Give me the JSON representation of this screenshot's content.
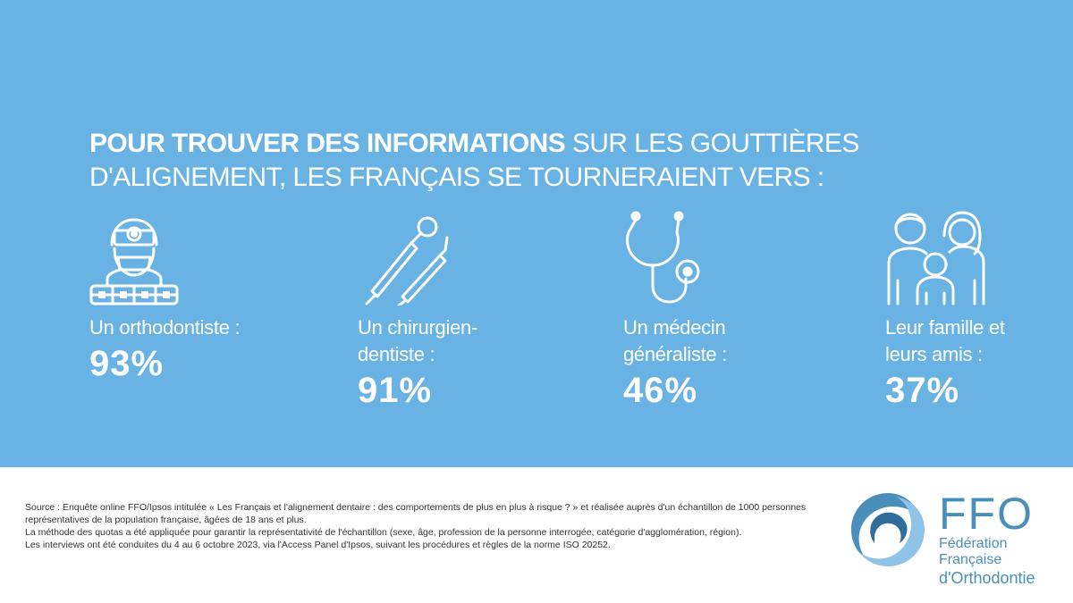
{
  "headline": {
    "bold": "POUR TROUVER DES INFORMATIONS",
    "regular": "SUR LES GOUTTIÈRES D'ALIGNEMENT, LES FRANÇAIS SE TOURNERAIENT VERS :"
  },
  "stats": [
    {
      "icon": "orthodontist-icon",
      "label_lines": [
        "Un orthodontiste :"
      ],
      "value": "93%"
    },
    {
      "icon": "dental-tools-icon",
      "label_lines": [
        "Un chirurgien-",
        "dentiste :"
      ],
      "value": "91%"
    },
    {
      "icon": "stethoscope-icon",
      "label_lines": [
        "Un médecin",
        "généraliste :"
      ],
      "value": "46%"
    },
    {
      "icon": "family-icon",
      "label_lines": [
        "Leur famille et",
        "leurs amis :"
      ],
      "value": "37%"
    }
  ],
  "source": [
    "Source : Enquête online FFO/Ipsos intitulée « Les Français et l'alignement dentaire : des comportements de plus en plus à risque ? » et réalisée auprès d'un échantillon de 1000 personnes représentatives de la population française, âgées de 18 ans et plus.",
    "La méthode des quotas a été appliquée pour garantir la représentativité de l'échantillon (sexe, âge, profession de la personne interrogée, catégorie d'agglomération, région).",
    "Les interviews ont été conduites du 4 au 6 octobre 2023, via l'Access Panel d'Ipsos, suivant les procédures et règles de la norme ISO 20252."
  ],
  "logo": {
    "abbr": "FFO",
    "line1": "Fédération Française",
    "line2": "d'Orthodontie"
  },
  "colors": {
    "panel": "#69b2e4",
    "text": "#ffffff",
    "logo": "#4a8fba"
  }
}
